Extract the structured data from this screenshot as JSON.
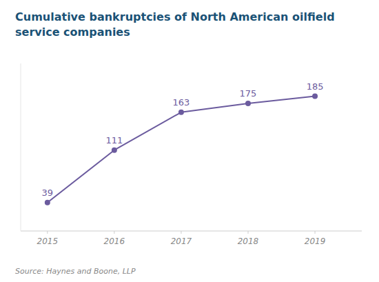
{
  "chart_data": {
    "type": "line",
    "title": "Cumulative bankruptcies of North American oilfield service companies",
    "x": [
      2015,
      2016,
      2017,
      2018,
      2019
    ],
    "values": [
      39,
      111,
      163,
      175,
      185
    ],
    "color": "#6b5b9e",
    "marker": "circle",
    "xlim": [
      2014.6,
      2019.7
    ],
    "xticks": [
      2015,
      2016,
      2017,
      2018,
      2019
    ],
    "ylim": [
      0,
      230
    ],
    "grid": false,
    "data_labels": true,
    "tick_labels": "x",
    "annotations": [
      "Source: Haynes and Boone, LLP"
    ]
  }
}
